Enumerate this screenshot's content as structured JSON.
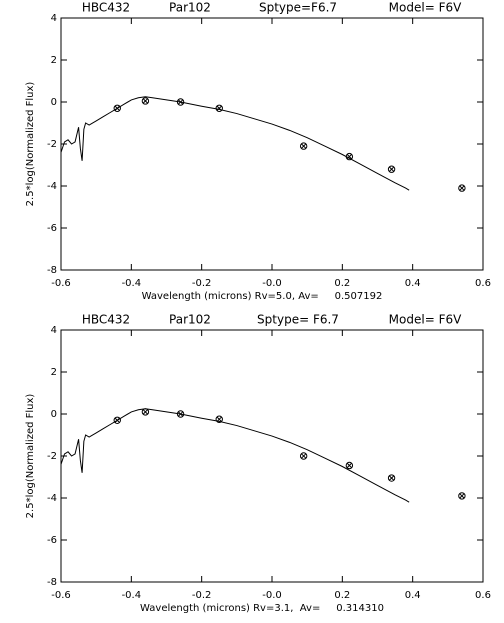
{
  "chart_data": [
    {
      "type": "line",
      "title_parts": [
        "HBC432",
        "Par102",
        "Sptype=F6.7",
        "Model= F6V"
      ],
      "xlabel": "Wavelength (microns) Rv=5.0, Av=     0.507192",
      "ylabel": "2.5*log(Normalized Flux)",
      "xlim": [
        -0.6,
        0.6
      ],
      "ylim": [
        -8,
        4
      ],
      "xticks": [
        -0.6,
        -0.4,
        -0.2,
        {
          "value": 0,
          "label": "-0.0"
        },
        0.2,
        0.4,
        0.6
      ],
      "yticks": [
        -8,
        -6,
        -4,
        -2,
        0,
        2,
        4
      ],
      "series": [
        {
          "style": "line",
          "color": "#000000",
          "x": [
            -0.6,
            -0.59,
            -0.58,
            -0.57,
            -0.56,
            -0.55,
            -0.545,
            -0.54,
            -0.535,
            -0.53,
            -0.52,
            -0.5,
            -0.48,
            -0.46,
            -0.44,
            -0.42,
            -0.4,
            -0.38,
            -0.36,
            -0.34,
            -0.3,
            -0.26,
            -0.2,
            -0.15,
            -0.1,
            -0.05,
            0,
            0.05,
            0.1,
            0.15,
            0.2,
            0.25,
            0.3,
            0.35,
            0.38,
            0.39
          ],
          "values": [
            -2.4,
            -1.9,
            -1.8,
            -2.0,
            -1.9,
            -1.2,
            -2.2,
            -2.8,
            -1.3,
            -1.0,
            -1.1,
            -0.9,
            -0.7,
            -0.5,
            -0.3,
            -0.1,
            0.1,
            0.2,
            0.25,
            0.2,
            0.1,
            0.0,
            -0.2,
            -0.35,
            -0.55,
            -0.8,
            -1.05,
            -1.35,
            -1.7,
            -2.1,
            -2.5,
            -2.95,
            -3.4,
            -3.85,
            -4.1,
            -4.2
          ]
        },
        {
          "style": "marker",
          "color": "#000000",
          "x": [
            -0.44,
            -0.36,
            -0.26,
            -0.15,
            0.09,
            0.22,
            0.34,
            0.54
          ],
          "values": [
            -0.3,
            0.05,
            0.0,
            -0.3,
            -2.1,
            -2.6,
            -3.2,
            -4.1
          ]
        }
      ]
    },
    {
      "type": "line",
      "title_parts": [
        "HBC432",
        "Par102",
        "Sptype= F6.7",
        "Model= F6V"
      ],
      "xlabel": "Wavelength (microns) Rv=3.1,  Av=     0.314310",
      "ylabel": "2.5*log(Normalized Flux)",
      "xlim": [
        -0.6,
        0.6
      ],
      "ylim": [
        -8,
        4
      ],
      "xticks": [
        -0.6,
        -0.4,
        -0.2,
        {
          "value": 0,
          "label": "-0.0"
        },
        0.2,
        0.4,
        0.6
      ],
      "yticks": [
        -8,
        -6,
        -4,
        -2,
        0,
        2,
        4
      ],
      "series": [
        {
          "style": "line",
          "color": "#000000",
          "x": [
            -0.6,
            -0.59,
            -0.58,
            -0.57,
            -0.56,
            -0.55,
            -0.545,
            -0.54,
            -0.535,
            -0.53,
            -0.52,
            -0.5,
            -0.48,
            -0.46,
            -0.44,
            -0.42,
            -0.4,
            -0.38,
            -0.36,
            -0.34,
            -0.3,
            -0.26,
            -0.2,
            -0.15,
            -0.1,
            -0.05,
            0,
            0.05,
            0.1,
            0.15,
            0.2,
            0.25,
            0.3,
            0.35,
            0.38,
            0.39
          ],
          "values": [
            -2.4,
            -1.9,
            -1.8,
            -2.0,
            -1.9,
            -1.2,
            -2.2,
            -2.8,
            -1.3,
            -1.0,
            -1.1,
            -0.9,
            -0.7,
            -0.5,
            -0.3,
            -0.1,
            0.1,
            0.2,
            0.25,
            0.2,
            0.1,
            0.0,
            -0.2,
            -0.35,
            -0.55,
            -0.8,
            -1.05,
            -1.35,
            -1.7,
            -2.1,
            -2.5,
            -2.95,
            -3.4,
            -3.85,
            -4.1,
            -4.2
          ]
        },
        {
          "style": "marker",
          "color": "#000000",
          "x": [
            -0.44,
            -0.36,
            -0.26,
            -0.15,
            0.09,
            0.22,
            0.34,
            0.54
          ],
          "values": [
            -0.3,
            0.1,
            0.0,
            -0.25,
            -2.0,
            -2.45,
            -3.05,
            -3.9
          ]
        }
      ]
    }
  ]
}
